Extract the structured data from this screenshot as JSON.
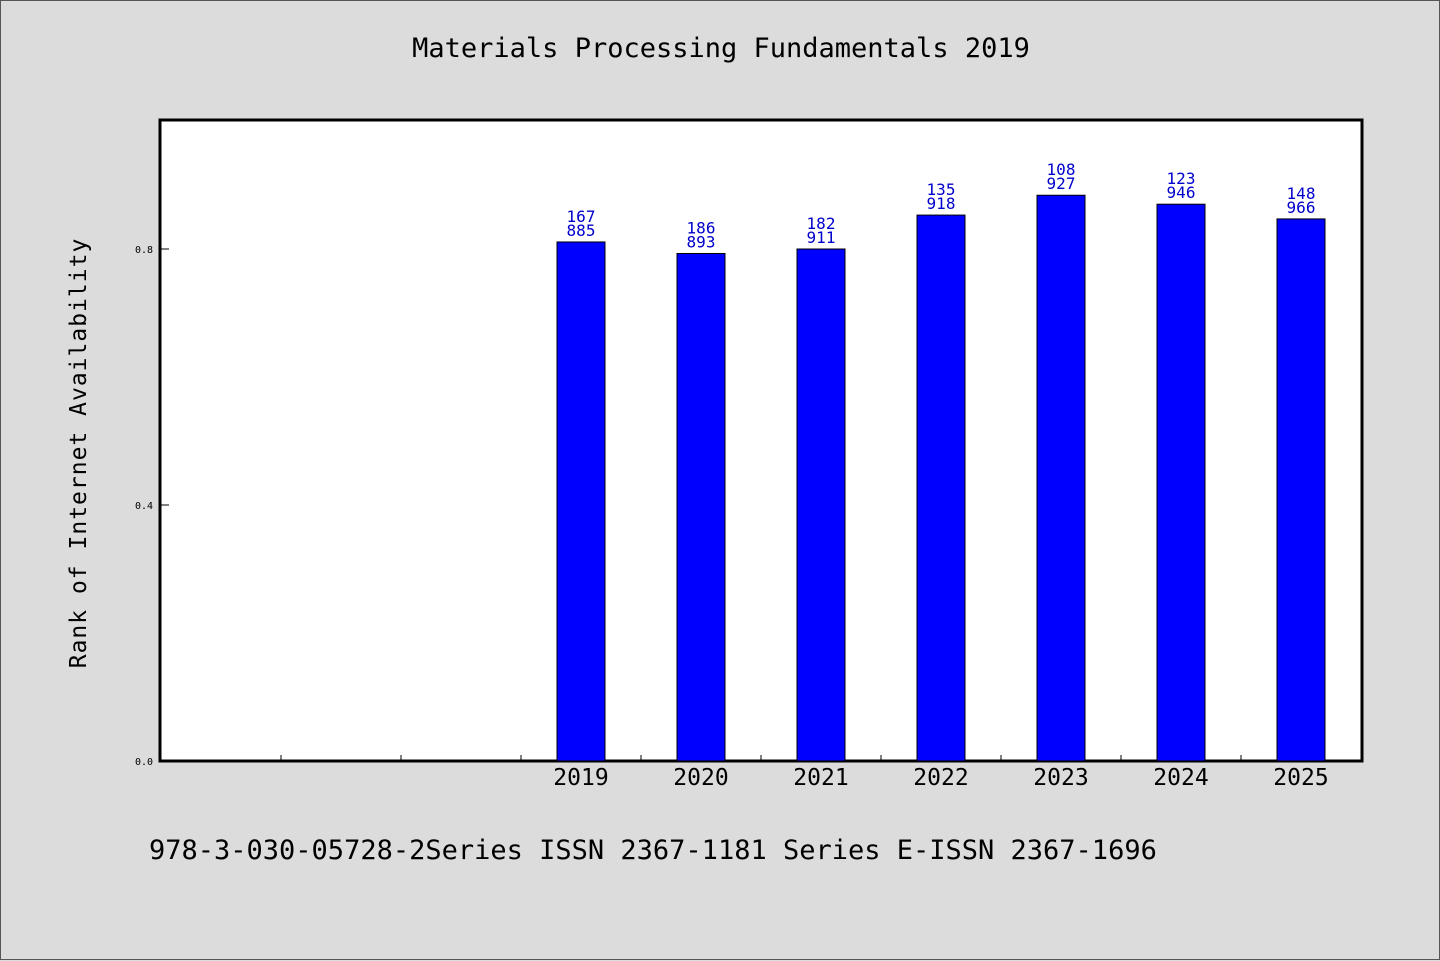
{
  "chart_data": {
    "type": "bar",
    "title": "Materials Processing Fundamentals 2019",
    "ylabel": "Rank of Internet Availability",
    "xlabel": "",
    "footer": "978-3-030-05728-2Series ISSN 2367-1181 Series E-ISSN 2367-1696",
    "ylim": [
      0,
      1.0
    ],
    "yticks": [
      "0.0",
      "0.4",
      "0.8"
    ],
    "ytick_values": [
      0.0,
      0.4,
      0.8
    ],
    "slots": [
      "",
      "",
      "",
      "2019",
      "2020",
      "2021",
      "2022",
      "2023",
      "2024",
      "2025"
    ],
    "categories": [
      "2019",
      "2020",
      "2021",
      "2022",
      "2023",
      "2024",
      "2025"
    ],
    "values": [
      0.811,
      0.793,
      0.8,
      0.853,
      0.884,
      0.87,
      0.847
    ],
    "labels": [
      [
        "167",
        "885"
      ],
      [
        "186",
        "893"
      ],
      [
        "182",
        "911"
      ],
      [
        "135",
        "918"
      ],
      [
        "108",
        "927"
      ],
      [
        "123",
        "946"
      ],
      [
        "148",
        "966"
      ]
    ],
    "colors": {
      "bar": "#0000ff",
      "label": "#0000cc",
      "background": "#dcdcdc",
      "plot": "#ffffff"
    },
    "grid": false
  }
}
